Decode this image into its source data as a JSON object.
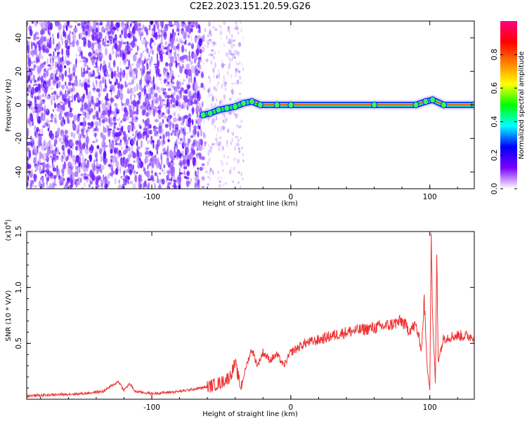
{
  "title": "C2E2.2023.151.20.59.G26",
  "chart_data": [
    {
      "type": "heatmap",
      "xlabel": "Height of straight line (km)",
      "ylabel": "Frequency (Hz)",
      "xlim": [
        -190,
        132
      ],
      "ylim": [
        -50,
        50
      ],
      "x_ticks": [
        -100,
        0,
        100
      ],
      "x_tick_labels": [
        "-100",
        "0",
        "100"
      ],
      "y_ticks": [
        -40,
        -20,
        0,
        20,
        40
      ],
      "y_tick_labels": [
        "-40",
        "-20",
        "0",
        "20",
        "40"
      ],
      "noise_region_km": [
        -190,
        -63
      ],
      "sparse_noise_region_km": [
        -63,
        -34
      ],
      "trace": [
        {
          "x": -63,
          "y": -6
        },
        {
          "x": -58,
          "y": -5
        },
        {
          "x": -52,
          "y": -3
        },
        {
          "x": -46,
          "y": -2
        },
        {
          "x": -40,
          "y": -1
        },
        {
          "x": -34,
          "y": 1
        },
        {
          "x": -28,
          "y": 2
        },
        {
          "x": -22,
          "y": 0
        },
        {
          "x": -10,
          "y": 0
        },
        {
          "x": 0,
          "y": 0
        },
        {
          "x": 60,
          "y": 0
        },
        {
          "x": 90,
          "y": 0
        },
        {
          "x": 97,
          "y": 2
        },
        {
          "x": 102,
          "y": 3
        },
        {
          "x": 110,
          "y": 0
        },
        {
          "x": 132,
          "y": 0
        }
      ],
      "colorbar": {
        "label": "Normalized spectral amplitude",
        "range": [
          0,
          1
        ],
        "ticks": [
          0.0,
          0.2,
          0.4,
          0.6,
          0.8
        ],
        "tick_labels": [
          "0.0",
          "0.2",
          "0.4",
          "0.6",
          "0.8"
        ],
        "colors": [
          "#ffffff",
          "#7b00ff",
          "#0000ff",
          "#00ffff",
          "#00ff00",
          "#ffff00",
          "#ff8000",
          "#ff0000",
          "#ff0080"
        ]
      },
      "grid": false
    },
    {
      "type": "line",
      "xlabel": "Height of straight line (km)",
      "ylabel": "SNR (10 * V/V)",
      "y_multiplier": "(x10",
      "y_multiplier_exp": "4",
      "y_multiplier_close": ")",
      "xlim": [
        -190,
        132
      ],
      "ylim": [
        0,
        1.5
      ],
      "x_ticks": [
        -100,
        0,
        100
      ],
      "x_tick_labels": [
        "-100",
        "0",
        "100"
      ],
      "y_ticks": [
        0.5,
        1.0,
        1.5
      ],
      "y_tick_labels": [
        "0.5",
        "1.0",
        "1.5"
      ],
      "series": [
        {
          "color": "#ee3333",
          "x": [
            -190,
            -170,
            -150,
            -135,
            -124,
            -120,
            -116,
            -112,
            -100,
            -80,
            -70,
            -60,
            -50,
            -44,
            -40,
            -36,
            -32,
            -28,
            -24,
            -20,
            -15,
            -10,
            -5,
            0,
            10,
            20,
            30,
            40,
            50,
            60,
            70,
            80,
            85,
            90,
            94,
            96,
            98,
            100,
            101,
            102,
            104,
            105,
            106,
            110,
            120,
            132
          ],
          "y": [
            0.03,
            0.04,
            0.05,
            0.07,
            0.16,
            0.08,
            0.14,
            0.07,
            0.05,
            0.07,
            0.09,
            0.11,
            0.15,
            0.2,
            0.32,
            0.1,
            0.3,
            0.45,
            0.3,
            0.42,
            0.35,
            0.4,
            0.3,
            0.42,
            0.5,
            0.53,
            0.57,
            0.6,
            0.62,
            0.64,
            0.66,
            0.7,
            0.62,
            0.66,
            0.45,
            0.9,
            0.3,
            0.1,
            1.5,
            0.7,
            0.15,
            1.3,
            0.35,
            0.55,
            0.57,
            0.56
          ]
        }
      ],
      "grid": false
    }
  ]
}
